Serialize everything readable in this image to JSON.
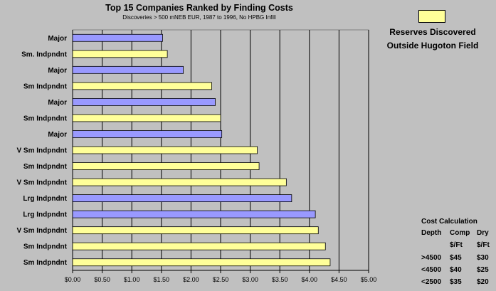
{
  "chart_data": {
    "type": "bar",
    "orientation": "horizontal",
    "title": "Top 15 Companies Ranked by Finding Costs",
    "subtitle": "Discoveries > 500 mNEB EUR, 1987 to 1996, No HPBG Infill",
    "categories": [
      "Major",
      "Sm. Indpndnt",
      "Major",
      "Sm Indpndnt",
      "Major",
      "Sm Indpndnt",
      "Major",
      "V Sm Indpndnt",
      "Sm Indpndnt",
      "V Sm Indpndnt",
      "Lrg Indpndnt",
      "Lrg Indpndnt",
      "V Sm Indpndnt",
      "Sm Indpndnt",
      "Sm Indpndnt"
    ],
    "values": [
      1.52,
      1.6,
      1.87,
      2.35,
      2.41,
      2.5,
      2.52,
      3.12,
      3.15,
      3.61,
      3.7,
      4.1,
      4.15,
      4.27,
      4.35
    ],
    "bar_colors": [
      "#9999ff",
      "#ffff99",
      "#9999ff",
      "#ffff99",
      "#9999ff",
      "#ffff99",
      "#9999ff",
      "#ffff99",
      "#ffff99",
      "#ffff99",
      "#9999ff",
      "#9999ff",
      "#ffff99",
      "#ffff99",
      "#ffff99"
    ],
    "xlim": [
      0,
      5
    ],
    "x_ticks": [
      "$0.00",
      "$0.50",
      "$1.00",
      "$1.50",
      "$2.00",
      "$2.50",
      "$3.00",
      "$3.50",
      "$4.00",
      "$4.50",
      "$5.00"
    ],
    "grid": "vertical",
    "legend": {
      "swatch_color": "#ffff99",
      "label_lines": [
        "Reserves Discovered",
        "Outside Hugoton Field"
      ],
      "placement": "top-right"
    }
  },
  "cost_table": {
    "title": "Cost Calculation",
    "headers": [
      "Depth",
      "Comp",
      "Dry"
    ],
    "units": [
      "",
      "$/Ft",
      "$/Ft"
    ],
    "rows": [
      [
        ">4500",
        "$45",
        "$30"
      ],
      [
        "<4500",
        "$40",
        "$25"
      ],
      [
        "<2500",
        "$35",
        "$20"
      ]
    ]
  },
  "colors": {
    "background": "#c0c0c0",
    "plot_area": "#c0c0c0",
    "major_bar": "#9999ff",
    "independent_bar": "#ffff99",
    "grid": "#000000"
  }
}
